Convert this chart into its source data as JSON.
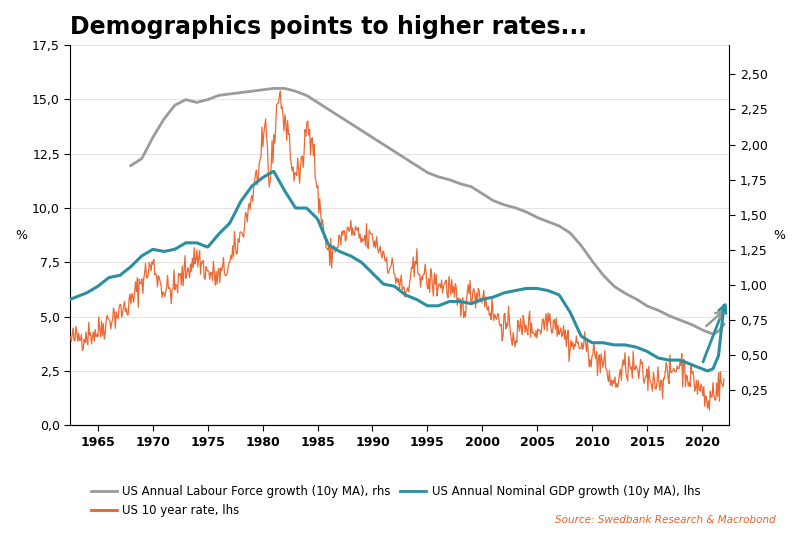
{
  "title": "Demographics points to higher rates...",
  "title_fontsize": 17,
  "ylabel_left": "%",
  "ylabel_right": "%",
  "ylim_left": [
    0,
    17.5
  ],
  "ylim_right": [
    0.0,
    2.7083
  ],
  "yticks_left": [
    0.0,
    2.5,
    5.0,
    7.5,
    10.0,
    12.5,
    15.0,
    17.5
  ],
  "ytick_labels_left": [
    "0,0",
    "2,5",
    "5,0",
    "7,5",
    "10,0",
    "12,5",
    "15,0",
    "17,5"
  ],
  "yticks_right_vals": [
    0.25,
    0.5,
    0.75,
    1.0,
    1.25,
    1.5,
    1.75,
    2.0,
    2.25,
    2.5
  ],
  "ytick_labels_right": [
    "0,25",
    "0,50",
    "0,75",
    "1,00",
    "1,25",
    "1,50",
    "1,75",
    "2,00",
    "2,25",
    "2,50"
  ],
  "xlim": [
    1962.5,
    2022.5
  ],
  "xticks": [
    1965,
    1970,
    1975,
    1980,
    1985,
    1990,
    1995,
    2000,
    2005,
    2010,
    2015,
    2020
  ],
  "source_text": "Source: Swedbank Research & Macrobond",
  "color_10yr": "#E8622A",
  "color_labour": "#9B9B9B",
  "color_gdp": "#2B8FA0",
  "color_source": "#E8622A",
  "background_color": "#FFFFFF",
  "legend_labour": "US Annual Labour Force growth (10y MA), rhs",
  "legend_10yr": "US 10 year rate, lhs",
  "legend_gdp": "US Annual Nominal GDP growth (10y MA), lhs",
  "lhs_min": 0.0,
  "lhs_max": 17.5,
  "rhs_min": 0.0,
  "rhs_max": 2.7083
}
